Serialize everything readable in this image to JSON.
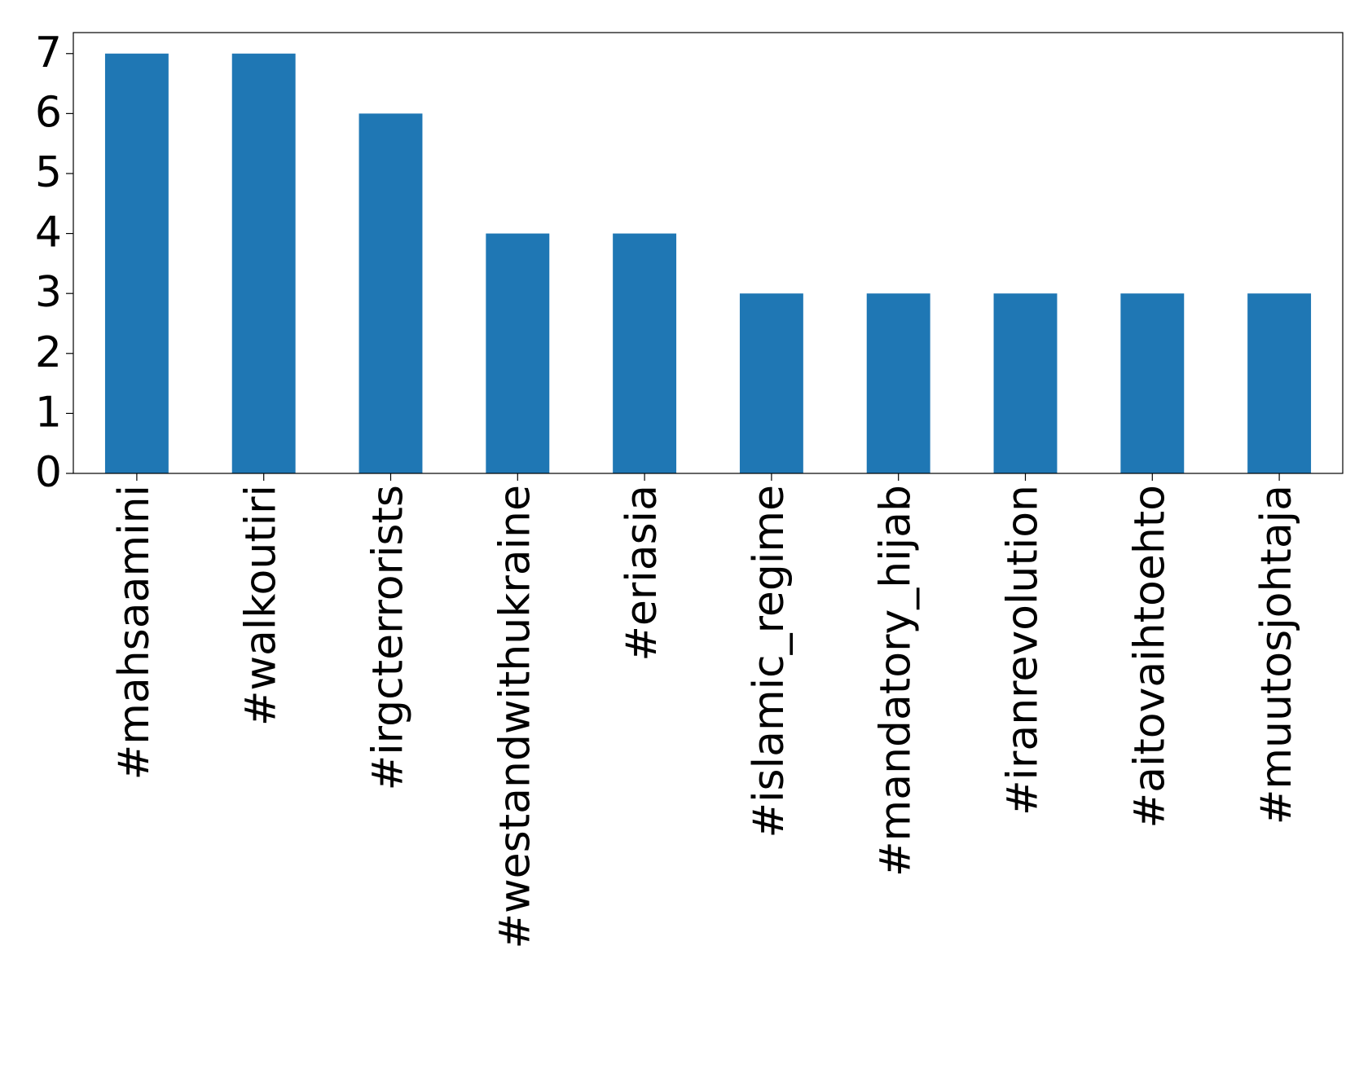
{
  "chart_data": {
    "type": "bar",
    "categories": [
      "#mahsaamini",
      "#walkoutiri",
      "#irgcterrorists",
      "#westandwithukraine",
      "#eriasia",
      "#islamic_regime",
      "#mandatory_hijab",
      "#iranrevolution",
      "#aitovaihtoehto",
      "#muutosjohtaja"
    ],
    "values": [
      7,
      7,
      6,
      4,
      4,
      3,
      3,
      3,
      3,
      3
    ],
    "color": "#1f77b4",
    "ylim": [
      0,
      7.35
    ],
    "yticks": [
      0,
      1,
      2,
      3,
      4,
      5,
      6,
      7
    ],
    "grid": false
  }
}
